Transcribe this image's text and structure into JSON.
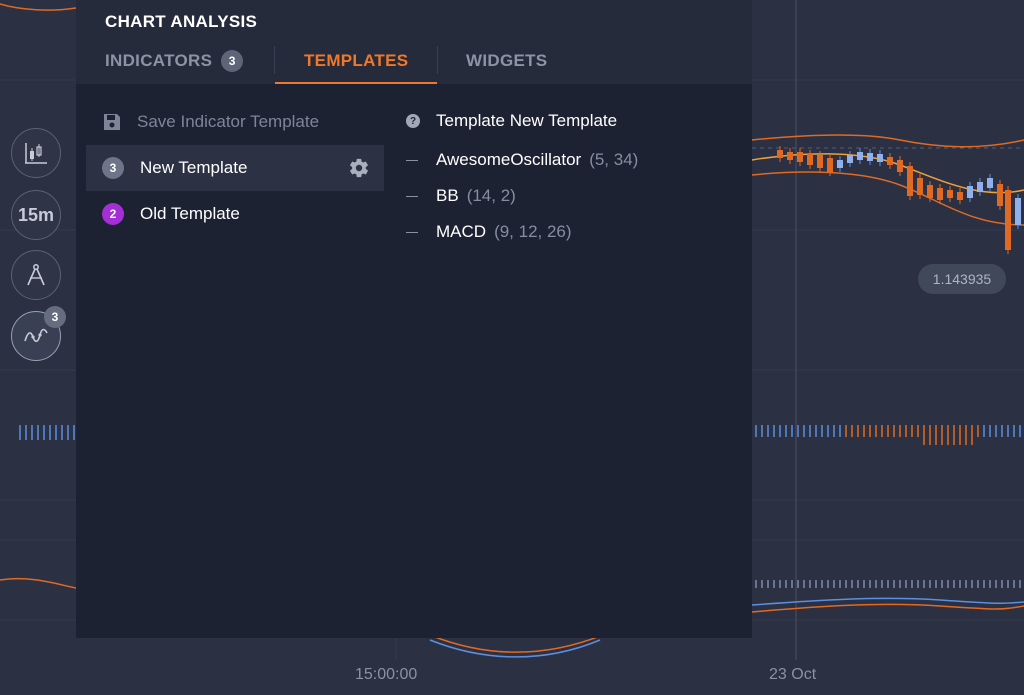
{
  "panel": {
    "title": "CHART ANALYSIS",
    "tabs": [
      {
        "label": "INDICATORS",
        "count": "3"
      },
      {
        "label": "TEMPLATES"
      },
      {
        "label": "WIDGETS"
      }
    ],
    "active_tab": "TEMPLATES"
  },
  "templates": {
    "save_label": "Save Indicator Template",
    "items": [
      {
        "number": "3",
        "name": "New Template",
        "badge_color": "#6f7588",
        "selected": true
      },
      {
        "number": "2",
        "name": "Old Template",
        "badge_color": "#a52fd6",
        "selected": false
      }
    ]
  },
  "details": {
    "title": "Template New Template",
    "indicators": [
      {
        "name": "AwesomeOscillator",
        "params": "(5, 34)"
      },
      {
        "name": "BB",
        "params": "(14, 2)"
      },
      {
        "name": "MACD",
        "params": "(9, 12, 26)"
      }
    ]
  },
  "toolbar": {
    "timeframe": "15m",
    "indicators_count": "3"
  },
  "chart": {
    "price_label": "1.143935",
    "time_labels": [
      "15:00:00",
      "23 Oct"
    ]
  },
  "colors": {
    "accent": "#f0782a",
    "panel_bg": "#1d2233",
    "bullish": "#5b8fe0",
    "bearish": "#e06a23"
  },
  "icons": {
    "save": "floppy-disk-icon",
    "settings": "gear-icon",
    "help": "question-circle-icon",
    "chart_type": "candlestick-icon",
    "drawing": "compass-icon",
    "indicators": "indicator-wave-icon"
  }
}
